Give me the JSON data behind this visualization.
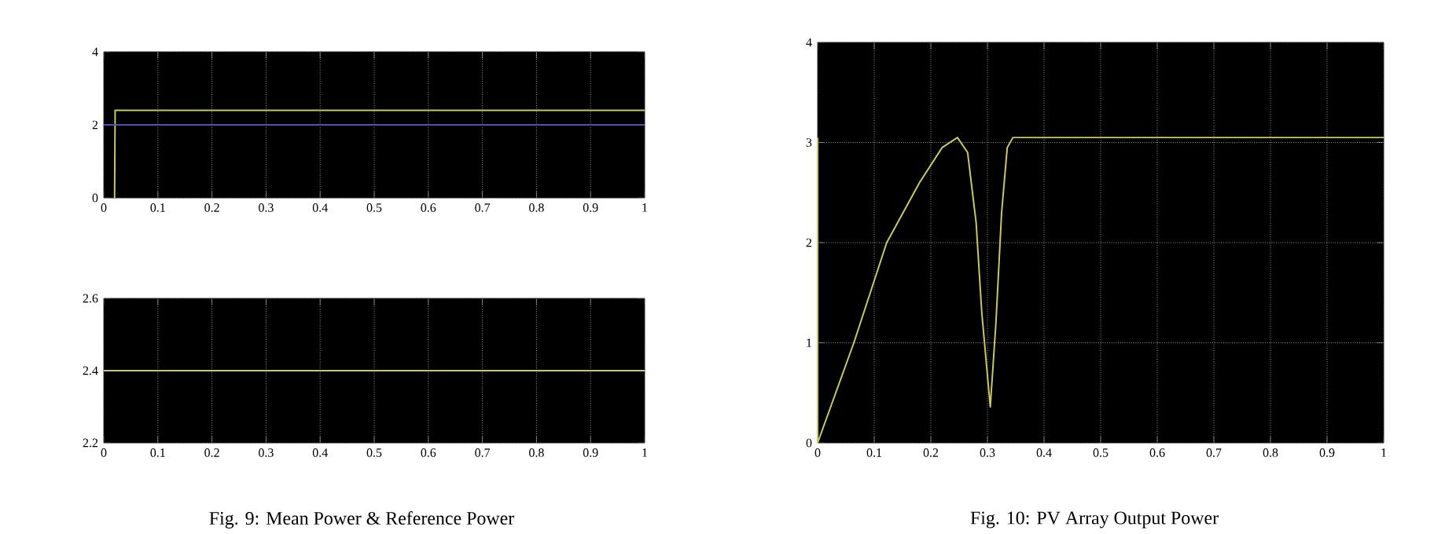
{
  "chart_data": [
    {
      "type": "line",
      "x": [
        0.02,
        0.021,
        1
      ],
      "series": [
        {
          "color": "#c8c864",
          "values": [
            0,
            2.4,
            2.4
          ]
        },
        {
          "color": "#5050b0",
          "x": [
            0,
            1
          ],
          "values": [
            2,
            2
          ]
        }
      ],
      "xlim": [
        0,
        1
      ],
      "ylim": [
        0,
        4
      ],
      "xticks": [
        0,
        0.1,
        0.2,
        0.3,
        0.4,
        0.5,
        0.6,
        0.7,
        0.8,
        0.9,
        1
      ],
      "yticks": [
        0,
        2,
        4
      ],
      "grid": true
    },
    {
      "type": "line",
      "x": [
        0,
        1
      ],
      "series": [
        {
          "color": "#c8c864",
          "values": [
            2.4,
            2.4
          ]
        }
      ],
      "xlim": [
        0,
        1
      ],
      "ylim": [
        2.2,
        2.6
      ],
      "xticks": [
        0,
        0.1,
        0.2,
        0.3,
        0.4,
        0.5,
        0.6,
        0.7,
        0.8,
        0.9,
        1
      ],
      "yticks": [
        2.2,
        2.4,
        2.6
      ],
      "grid": true,
      "annotations": [
        "Fig. 9: Mean Power & Reference Power"
      ]
    },
    {
      "type": "line",
      "x": [
        0,
        0,
        0.064,
        0.122,
        0.18,
        0.22,
        0.247,
        0.265,
        0.28,
        0.29,
        0.305,
        0.315,
        0.325,
        0.335,
        0.345,
        1
      ],
      "series": [
        {
          "color": "#c8c864",
          "values": [
            3.05,
            0,
            1,
            2,
            2.6,
            2.95,
            3.05,
            2.9,
            2.2,
            1.3,
            0.36,
            1.2,
            2.3,
            2.95,
            3.05,
            3.05
          ]
        }
      ],
      "xlim": [
        0,
        1
      ],
      "ylim": [
        0,
        4
      ],
      "xticks": [
        0,
        0.1,
        0.2,
        0.3,
        0.4,
        0.5,
        0.6,
        0.7,
        0.8,
        0.9,
        1
      ],
      "yticks": [
        0,
        1,
        2,
        3,
        4
      ],
      "grid": true,
      "annotations": [
        "Fig. 10: PV Array Output Power"
      ]
    }
  ]
}
